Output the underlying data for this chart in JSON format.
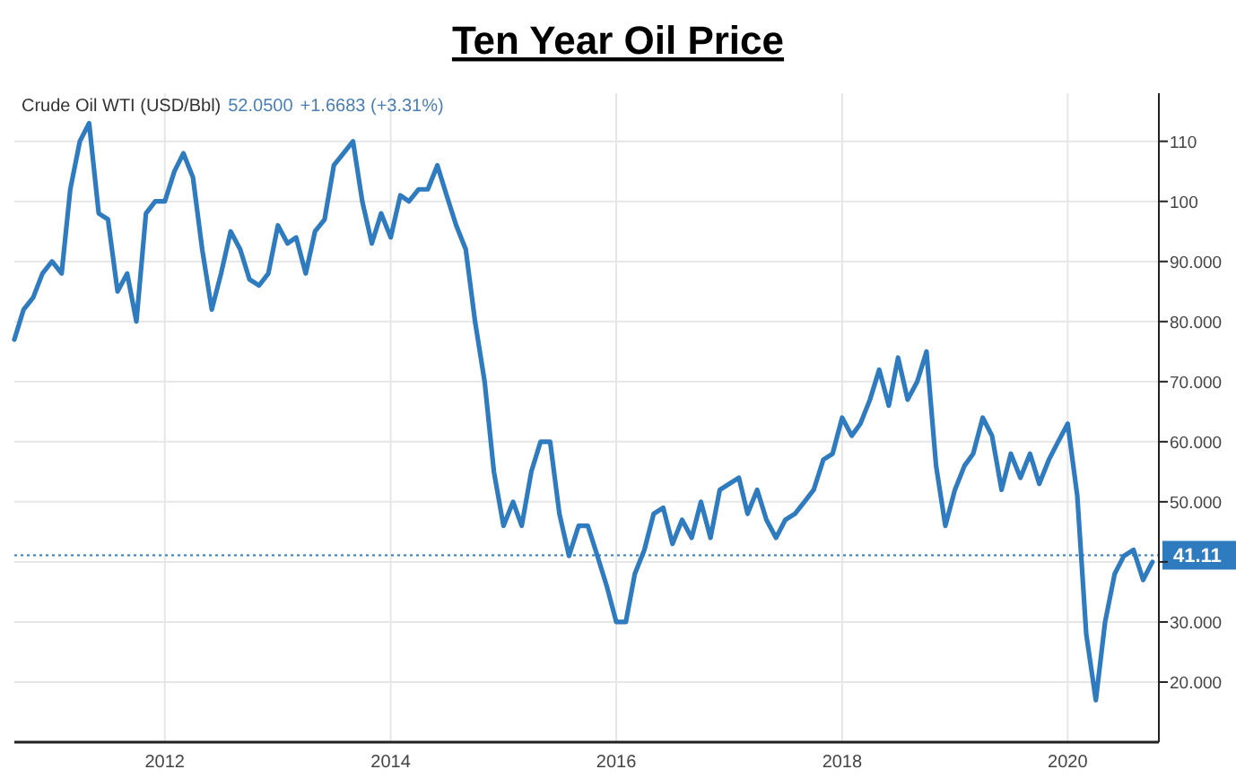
{
  "chart_data": {
    "type": "line",
    "title": "Ten Year Oil Price",
    "annotations": [
      "Crude Oil WTI (USD/Bbl)",
      "52.0500",
      "+1.6683 (+3.31%)"
    ],
    "x": [
      "2010-09",
      "2010-10",
      "2010-11",
      "2010-12",
      "2011-01",
      "2011-02",
      "2011-03",
      "2011-04",
      "2011-05",
      "2011-06",
      "2011-07",
      "2011-08",
      "2011-09",
      "2011-10",
      "2011-11",
      "2011-12",
      "2012-01",
      "2012-02",
      "2012-03",
      "2012-04",
      "2012-05",
      "2012-06",
      "2012-07",
      "2012-08",
      "2012-09",
      "2012-10",
      "2012-11",
      "2012-12",
      "2013-01",
      "2013-02",
      "2013-03",
      "2013-04",
      "2013-05",
      "2013-06",
      "2013-07",
      "2013-08",
      "2013-09",
      "2013-10",
      "2013-11",
      "2013-12",
      "2014-01",
      "2014-02",
      "2014-03",
      "2014-04",
      "2014-05",
      "2014-06",
      "2014-07",
      "2014-08",
      "2014-09",
      "2014-10",
      "2014-11",
      "2014-12",
      "2015-01",
      "2015-02",
      "2015-03",
      "2015-04",
      "2015-05",
      "2015-06",
      "2015-07",
      "2015-08",
      "2015-09",
      "2015-10",
      "2015-11",
      "2015-12",
      "2016-01",
      "2016-02",
      "2016-03",
      "2016-04",
      "2016-05",
      "2016-06",
      "2016-07",
      "2016-08",
      "2016-09",
      "2016-10",
      "2016-11",
      "2016-12",
      "2017-01",
      "2017-02",
      "2017-03",
      "2017-04",
      "2017-05",
      "2017-06",
      "2017-07",
      "2017-08",
      "2017-09",
      "2017-10",
      "2017-11",
      "2017-12",
      "2018-01",
      "2018-02",
      "2018-03",
      "2018-04",
      "2018-05",
      "2018-06",
      "2018-07",
      "2018-08",
      "2018-09",
      "2018-10",
      "2018-11",
      "2018-12",
      "2019-01",
      "2019-02",
      "2019-03",
      "2019-04",
      "2019-05",
      "2019-06",
      "2019-07",
      "2019-08",
      "2019-09",
      "2019-10",
      "2019-11",
      "2019-12",
      "2020-01",
      "2020-02",
      "2020-03",
      "2020-04",
      "2020-05",
      "2020-06",
      "2020-07",
      "2020-08",
      "2020-09",
      "2020-10"
    ],
    "series": [
      {
        "color": "#2f7bbf",
        "values": [
          77,
          82,
          84,
          88,
          90,
          88,
          102,
          110,
          113,
          98,
          97,
          85,
          88,
          80,
          98,
          100,
          100,
          105,
          108,
          104,
          92,
          82,
          88,
          95,
          92,
          87,
          86,
          88,
          96,
          93,
          94,
          88,
          95,
          97,
          106,
          108,
          110,
          100,
          93,
          98,
          94,
          101,
          100,
          102,
          102,
          106,
          101,
          96,
          92,
          80,
          70,
          55,
          46,
          50,
          46,
          55,
          60,
          60,
          48,
          41,
          46,
          46,
          41,
          36,
          30,
          30,
          38,
          42,
          48,
          49,
          43,
          47,
          44,
          50,
          44,
          52,
          53,
          54,
          48,
          52,
          47,
          44,
          47,
          48,
          50,
          52,
          57,
          58,
          64,
          61,
          63,
          67,
          72,
          66,
          74,
          67,
          70,
          75,
          56,
          46,
          52,
          56,
          58,
          64,
          61,
          52,
          58,
          54,
          58,
          53,
          57,
          60,
          63,
          51,
          28,
          17,
          30,
          38,
          41,
          42,
          37,
          40
        ]
      }
    ],
    "xlim": [
      "2010-09-01",
      "2020-10-22"
    ],
    "xticks": [
      {
        "value": "2012-01-01",
        "label": "2012"
      },
      {
        "value": "2014-01-01",
        "label": "2014"
      },
      {
        "value": "2016-01-01",
        "label": "2016"
      },
      {
        "value": "2018-01-01",
        "label": "2018"
      },
      {
        "value": "2020-01-01",
        "label": "2020"
      }
    ],
    "ylim": [
      10,
      118
    ],
    "yticks": [
      {
        "value": 20,
        "label": "20.000"
      },
      {
        "value": 30,
        "label": "30.000"
      },
      {
        "value": 40,
        "label": null
      },
      {
        "value": 50,
        "label": "50.000"
      },
      {
        "value": 60,
        "label": "60.000"
      },
      {
        "value": 70,
        "label": "70.000"
      },
      {
        "value": 80,
        "label": "80.000"
      },
      {
        "value": 90,
        "label": "90.000"
      },
      100,
      110
    ],
    "ref_lines": [
      {
        "axis": "y",
        "value": 41.11,
        "label": "41.11",
        "color": "#2f7bbf",
        "line_style": "dotted"
      }
    ],
    "grid": true,
    "marker": "none",
    "line_style": "solid"
  }
}
